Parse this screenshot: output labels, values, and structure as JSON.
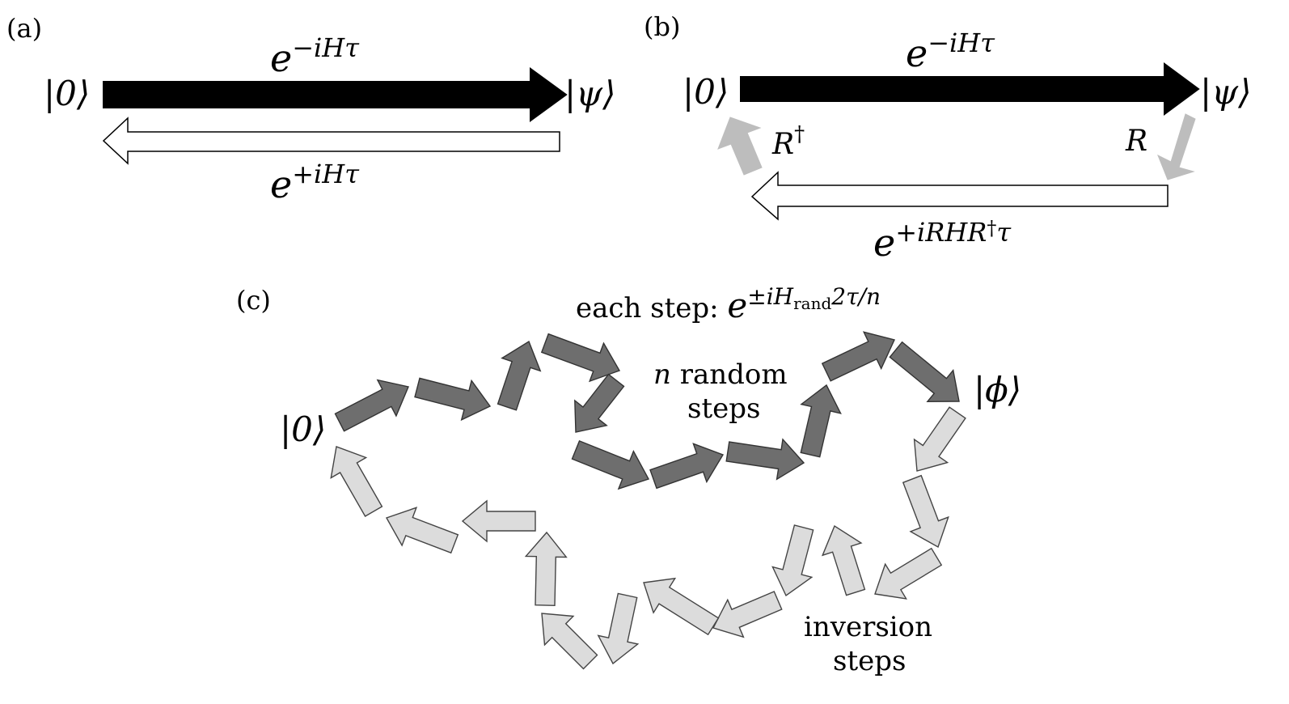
{
  "panel_a": {
    "label": "(a)",
    "start_state": "|0⟩",
    "end_state": "|ψ⟩",
    "forward_op": {
      "base": "e",
      "exp": "−iHτ"
    },
    "backward_op": {
      "base": "e",
      "exp": "+iHτ"
    }
  },
  "panel_b": {
    "label": "(b)",
    "start_state": "|0⟩",
    "end_state": "|ψ⟩",
    "forward_op": {
      "base": "e",
      "exp": "−iHτ"
    },
    "rotation": "R",
    "rotation_inverse": {
      "base": "R",
      "dagger": "†"
    },
    "backward_op": {
      "base": "e",
      "exp1": "+iRHR",
      "dagger": "†",
      "exp2": "τ"
    }
  },
  "panel_c": {
    "label": "(c)",
    "start_state": "|0⟩",
    "end_state": "|ϕ⟩",
    "step_text": "each step: ",
    "step_op": {
      "base": "e",
      "exp_a": "±iH",
      "sub": "rand",
      "exp_b": "2τ/n"
    },
    "random_label": {
      "n": "n",
      "line1": " random",
      "line2": "steps"
    },
    "inversion_label": {
      "line1": "inversion",
      "line2": "steps"
    },
    "colors": {
      "random_steps": "#6e6e6e",
      "inversion_steps": "#dcdcdc",
      "rotation": "#bdbdbd"
    }
  }
}
